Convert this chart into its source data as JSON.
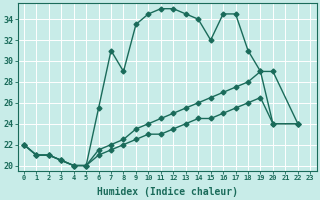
{
  "title": "",
  "xlabel": "Humidex (Indice chaleur)",
  "bg_color": "#c8ece8",
  "grid_color": "#ffffff",
  "line_color": "#1a6b5a",
  "xlim": [
    -0.5,
    23.5
  ],
  "ylim": [
    19.5,
    35.5
  ],
  "xtick_labels": [
    "0",
    "1",
    "2",
    "3",
    "4",
    "5",
    "6",
    "7",
    "8",
    "9",
    "10",
    "11",
    "12",
    "13",
    "14",
    "15",
    "16",
    "17",
    "18",
    "19",
    "20",
    "21",
    "22",
    "23"
  ],
  "ytick_values": [
    20,
    22,
    24,
    26,
    28,
    30,
    32,
    34
  ],
  "series": [
    {
      "x": [
        0,
        1,
        2,
        3,
        4,
        5,
        6,
        7,
        8,
        9,
        10,
        11,
        12,
        13,
        14,
        15,
        16,
        17,
        18,
        19,
        20,
        22
      ],
      "y": [
        22.0,
        21.0,
        21.0,
        20.5,
        20.0,
        20.0,
        25.5,
        31.0,
        29.0,
        33.5,
        34.5,
        35.0,
        35.0,
        34.5,
        34.0,
        32.0,
        34.5,
        34.5,
        31.0,
        29.0,
        24.0,
        24.0
      ]
    },
    {
      "x": [
        0,
        1,
        2,
        3,
        4,
        5,
        6,
        7,
        8,
        9,
        10,
        11,
        12,
        13,
        14,
        15,
        16,
        17,
        18,
        19,
        20,
        22
      ],
      "y": [
        22.0,
        21.0,
        21.0,
        20.5,
        20.0,
        20.0,
        21.5,
        22.0,
        22.5,
        23.5,
        24.0,
        24.5,
        25.0,
        25.5,
        26.0,
        26.5,
        27.0,
        27.5,
        28.0,
        29.0,
        29.0,
        24.0
      ]
    },
    {
      "x": [
        0,
        1,
        2,
        3,
        4,
        5,
        6,
        7,
        8,
        9,
        10,
        11,
        12,
        13,
        14,
        15,
        16,
        17,
        18,
        19,
        20,
        22
      ],
      "y": [
        22.0,
        21.0,
        21.0,
        20.5,
        20.0,
        20.0,
        21.0,
        21.5,
        22.0,
        22.5,
        23.0,
        23.0,
        23.5,
        24.0,
        24.5,
        24.5,
        25.0,
        25.5,
        26.0,
        26.5,
        24.0,
        24.0
      ]
    }
  ],
  "marker": "D",
  "markersize": 2.5,
  "linewidth": 1.0
}
